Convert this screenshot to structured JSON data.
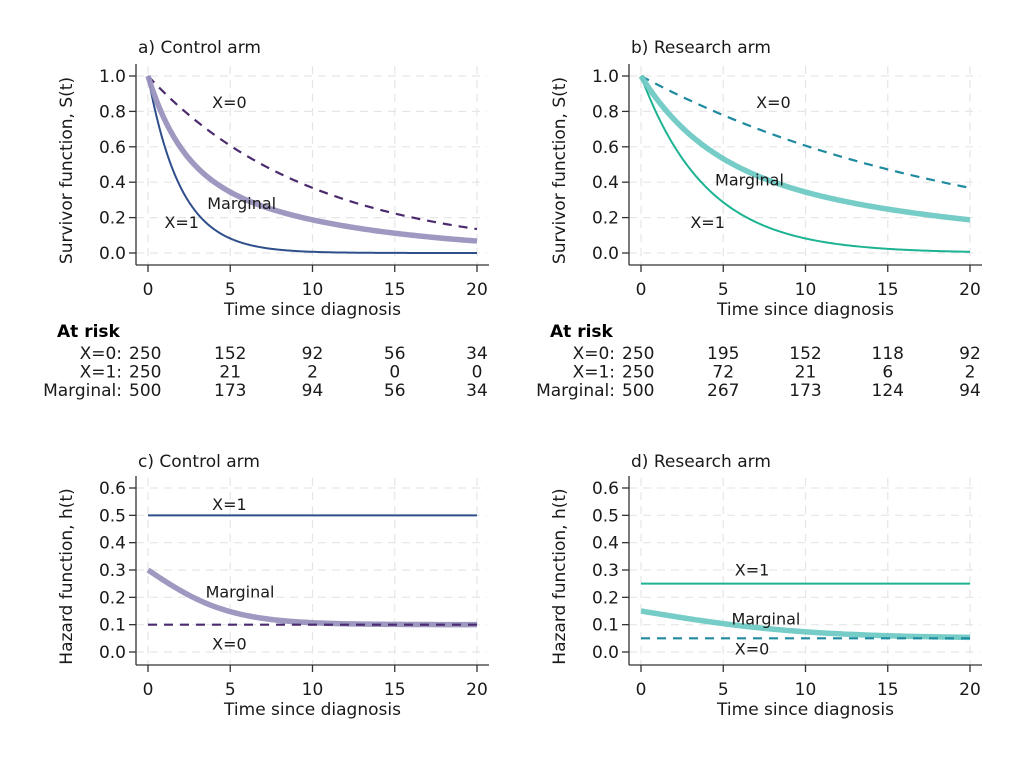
{
  "colors": {
    "control_x0": "#4b2a6e",
    "control_x1": "#2f4f8c",
    "control_marginal": "#9a93bf",
    "research_x0": "#1f8aa0",
    "research_x1": "#1cb393",
    "research_marginal": "#6fcac4",
    "grid": "#e6e6e6",
    "axis": "#333333"
  },
  "chart_data": [
    {
      "id": "a",
      "type": "line",
      "title": "a) Control arm",
      "xlabel": "Time since diagnosis",
      "ylabel": "Survivor function, S(t)",
      "xlim": [
        0,
        20
      ],
      "ylim": [
        0,
        1
      ],
      "xticks": [
        0,
        5,
        10,
        15,
        20
      ],
      "yticks": [
        "0.0",
        "0.2",
        "0.4",
        "0.6",
        "0.8",
        "1.0"
      ],
      "grid": true,
      "function": "survival",
      "series": [
        {
          "name": "X=0",
          "hazard": 0.1,
          "style": "dashed",
          "color_key": "control_x0",
          "label_at": [
            3.9,
            0.82
          ],
          "values_at_x": {
            "0": 1.0,
            "5": 0.61,
            "10": 0.37,
            "15": 0.22,
            "20": 0.14
          }
        },
        {
          "name": "X=1",
          "hazard": 0.5,
          "style": "solid",
          "color_key": "control_x1",
          "label_at": [
            1.0,
            0.14
          ],
          "values_at_x": {
            "0": 1.0,
            "5": 0.08,
            "10": 0.01,
            "15": 0.0,
            "20": 0.0
          }
        },
        {
          "name": "Marginal",
          "mixture": [
            0.1,
            0.5
          ],
          "style": "thick",
          "color_key": "control_marginal",
          "label_at": [
            3.6,
            0.25
          ],
          "values_at_x": {
            "0": 1.0,
            "5": 0.34,
            "10": 0.19,
            "15": 0.11,
            "20": 0.07
          }
        }
      ],
      "at_risk": {
        "heading": "At risk",
        "rows": [
          {
            "label": "X=0:",
            "values": [
              250,
              152,
              92,
              56,
              34
            ]
          },
          {
            "label": "X=1:",
            "values": [
              250,
              21,
              2,
              0,
              0
            ]
          },
          {
            "label": "Marginal:",
            "values": [
              500,
              173,
              94,
              56,
              34
            ]
          }
        ]
      }
    },
    {
      "id": "b",
      "type": "line",
      "title": "b) Research arm",
      "xlabel": "Time since diagnosis",
      "ylabel": "Survivor function, S(t)",
      "xlim": [
        0,
        20
      ],
      "ylim": [
        0,
        1
      ],
      "xticks": [
        0,
        5,
        10,
        15,
        20
      ],
      "yticks": [
        "0.0",
        "0.2",
        "0.4",
        "0.6",
        "0.8",
        "1.0"
      ],
      "grid": true,
      "function": "survival",
      "series": [
        {
          "name": "X=0",
          "hazard": 0.05,
          "style": "dashed",
          "color_key": "research_x0",
          "label_at": [
            7.0,
            0.82
          ],
          "values_at_x": {
            "0": 1.0,
            "5": 0.78,
            "10": 0.61,
            "15": 0.47,
            "20": 0.37
          }
        },
        {
          "name": "X=1",
          "hazard": 0.25,
          "style": "solid",
          "color_key": "research_x1",
          "label_at": [
            3.0,
            0.14
          ],
          "values_at_x": {
            "0": 1.0,
            "5": 0.29,
            "10": 0.08,
            "15": 0.02,
            "20": 0.01
          }
        },
        {
          "name": "Marginal",
          "mixture": [
            0.05,
            0.25
          ],
          "style": "thick",
          "color_key": "research_marginal",
          "label_at": [
            4.5,
            0.38
          ],
          "values_at_x": {
            "0": 1.0,
            "5": 0.53,
            "10": 0.35,
            "15": 0.25,
            "20": 0.19
          }
        }
      ],
      "at_risk": {
        "heading": "At risk",
        "rows": [
          {
            "label": "X=0:",
            "values": [
              250,
              195,
              152,
              118,
              92
            ]
          },
          {
            "label": "X=1:",
            "values": [
              250,
              72,
              21,
              6,
              2
            ]
          },
          {
            "label": "Marginal:",
            "values": [
              500,
              267,
              173,
              124,
              94
            ]
          }
        ]
      }
    },
    {
      "id": "c",
      "type": "line",
      "title": "c) Control arm",
      "xlabel": "Time since diagnosis",
      "ylabel": "Hazard function, h(t)",
      "xlim": [
        0,
        20
      ],
      "ylim": [
        0,
        0.6
      ],
      "xticks": [
        0,
        5,
        10,
        15,
        20
      ],
      "yticks": [
        "0.0",
        "0.1",
        "0.2",
        "0.3",
        "0.4",
        "0.5",
        "0.6"
      ],
      "grid": true,
      "function": "hazard",
      "series": [
        {
          "name": "X=1",
          "hazard": 0.5,
          "style": "solid",
          "color_key": "control_x1",
          "label_at": [
            3.9,
            0.52
          ],
          "values_at_x": {
            "0": 0.5,
            "5": 0.5,
            "10": 0.5,
            "15": 0.5,
            "20": 0.5
          }
        },
        {
          "name": "Marginal",
          "mixture": [
            0.1,
            0.5
          ],
          "style": "thick",
          "color_key": "control_marginal",
          "label_at": [
            3.5,
            0.2
          ],
          "values_at_x": {
            "0": 0.3,
            "5": 0.15,
            "10": 0.11,
            "15": 0.1,
            "20": 0.1
          }
        },
        {
          "name": "X=0",
          "hazard": 0.1,
          "style": "dashed",
          "color_key": "control_x0",
          "label_at": [
            3.9,
            0.01
          ],
          "values_at_x": {
            "0": 0.1,
            "5": 0.1,
            "10": 0.1,
            "15": 0.1,
            "20": 0.1
          }
        }
      ]
    },
    {
      "id": "d",
      "type": "line",
      "title": "d) Research arm",
      "xlabel": "Time since diagnosis",
      "ylabel": "Hazard function, h(t)",
      "xlim": [
        0,
        20
      ],
      "ylim": [
        0,
        0.6
      ],
      "xticks": [
        0,
        5,
        10,
        15,
        20
      ],
      "yticks": [
        "0.0",
        "0.1",
        "0.2",
        "0.3",
        "0.4",
        "0.5",
        "0.6"
      ],
      "grid": true,
      "function": "hazard",
      "series": [
        {
          "name": "X=1",
          "hazard": 0.25,
          "style": "solid",
          "color_key": "research_x1",
          "label_at": [
            5.7,
            0.28
          ],
          "values_at_x": {
            "0": 0.25,
            "5": 0.25,
            "10": 0.25,
            "15": 0.25,
            "20": 0.25
          }
        },
        {
          "name": "Marginal",
          "mixture": [
            0.05,
            0.25
          ],
          "style": "thick",
          "color_key": "research_marginal",
          "label_at": [
            5.5,
            0.1
          ],
          "values_at_x": {
            "0": 0.15,
            "5": 0.11,
            "10": 0.08,
            "15": 0.06,
            "20": 0.055
          }
        },
        {
          "name": "X=0",
          "hazard": 0.05,
          "style": "dashed",
          "color_key": "research_x0",
          "label_at": [
            5.7,
            -0.01
          ],
          "values_at_x": {
            "0": 0.05,
            "5": 0.05,
            "10": 0.05,
            "15": 0.05,
            "20": 0.05
          }
        }
      ]
    }
  ]
}
